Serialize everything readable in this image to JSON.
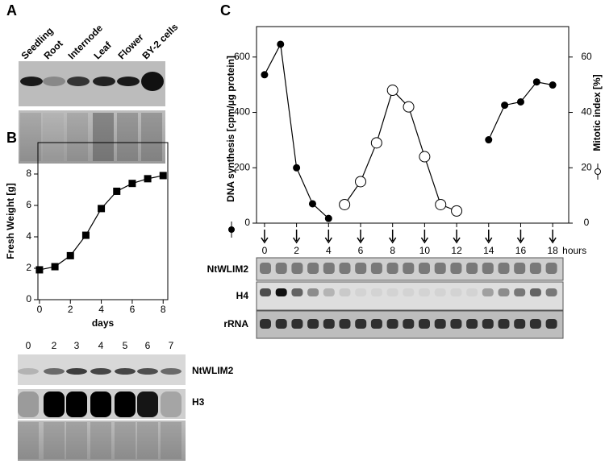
{
  "panels": [
    "A",
    "B",
    "C"
  ],
  "blots": {
    "a": {
      "lanes": [
        "Seedling",
        "Root",
        "Internode",
        "Leaf",
        "Flower",
        "BY-2 cells"
      ]
    },
    "b": {
      "lanes": [
        "0",
        "2",
        "3",
        "4",
        "5",
        "6",
        "7"
      ],
      "rows": [
        "NtWLIM2",
        "H3"
      ]
    },
    "c": {
      "rows": [
        "NtWLIM2",
        "H4",
        "rRNA"
      ]
    }
  },
  "chart_data": [
    {
      "type": "line",
      "x_label": "days",
      "y_label": "Fresh Weight [g]",
      "x": [
        0,
        1,
        2,
        3,
        4,
        5,
        6,
        7,
        8
      ],
      "series": [
        {
          "color": "#000000",
          "marker": "square",
          "filled": true,
          "values": [
            1.9,
            2.1,
            2.8,
            4.1,
            5.8,
            6.9,
            7.4,
            7.7,
            7.9
          ]
        }
      ],
      "xlim": [
        -0.1,
        8.3
      ],
      "ylim": [
        0,
        10
      ],
      "xticks": [
        0,
        2,
        4,
        6,
        8
      ],
      "yticks": [
        0,
        2,
        4,
        6,
        8
      ]
    },
    {
      "type": "line",
      "x_unit": "hours",
      "y_label": "DNA synthesis [cpm/µg protein]",
      "y2_label": "Mitotic index [%]",
      "x": [
        0,
        1,
        2,
        3,
        4,
        5,
        6,
        7,
        8,
        9,
        10,
        11,
        12,
        13,
        14,
        15,
        16,
        17,
        18
      ],
      "series": [
        {
          "color": "#000000",
          "marker": "circle",
          "filled": true,
          "values": [
            536,
            646,
            200,
            70,
            17,
            null,
            null,
            null,
            null,
            null,
            null,
            null,
            null,
            null,
            301,
            426,
            438,
            510,
            499
          ]
        },
        {
          "color": "#000000",
          "marker": "circle",
          "filled": false,
          "axis": "y2",
          "values": [
            null,
            null,
            null,
            null,
            null,
            6.7,
            15,
            29,
            48,
            42,
            24,
            6.7,
            4.4,
            null,
            null,
            null,
            null,
            null,
            null
          ]
        }
      ],
      "xlim": [
        -0.5,
        19
      ],
      "ylim": [
        0,
        710
      ],
      "y2lim": [
        0,
        71
      ],
      "xticks": [
        0,
        2,
        4,
        6,
        8,
        10,
        12,
        14,
        16,
        18
      ],
      "yticks": [
        0,
        200,
        400,
        600
      ],
      "y2ticks": [
        0,
        20,
        40,
        60
      ]
    }
  ]
}
